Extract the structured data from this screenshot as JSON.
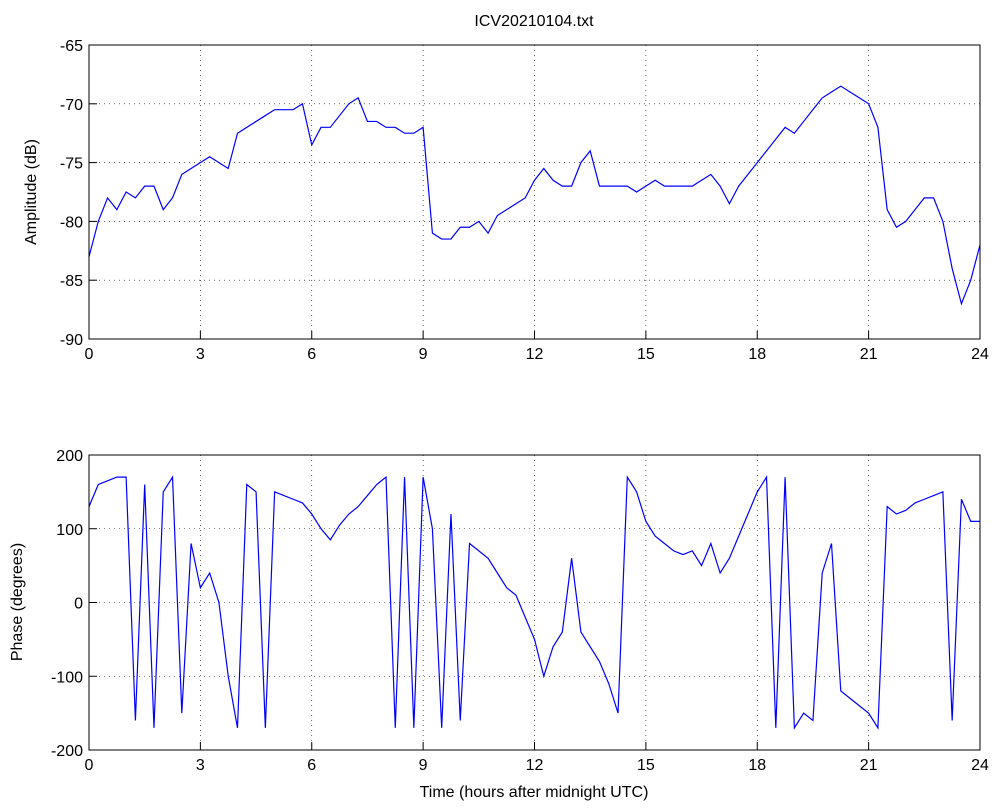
{
  "chart_data": [
    {
      "type": "line",
      "title": "ICV20210104.txt",
      "ylabel": "Amplitude (dB)",
      "x": [
        0,
        0.25,
        0.5,
        0.75,
        1,
        1.25,
        1.5,
        1.75,
        2,
        2.25,
        2.5,
        2.75,
        3,
        3.25,
        3.5,
        3.75,
        4,
        4.25,
        4.5,
        4.75,
        5,
        5.25,
        5.5,
        5.75,
        6,
        6.25,
        6.5,
        6.75,
        7,
        7.25,
        7.5,
        7.75,
        8,
        8.25,
        8.5,
        8.75,
        9,
        9.25,
        9.5,
        9.75,
        10,
        10.25,
        10.5,
        10.75,
        11,
        11.25,
        11.5,
        11.75,
        12,
        12.25,
        12.5,
        12.75,
        13,
        13.25,
        13.5,
        13.75,
        14,
        14.25,
        14.5,
        14.75,
        15,
        15.25,
        15.5,
        15.75,
        16,
        16.25,
        16.5,
        16.75,
        17,
        17.25,
        17.5,
        17.75,
        18,
        18.25,
        18.5,
        18.75,
        19,
        19.25,
        19.5,
        19.75,
        20,
        20.25,
        20.5,
        20.75,
        21,
        21.25,
        21.5,
        21.75,
        22,
        22.25,
        22.5,
        22.75,
        23,
        23.25,
        23.5,
        23.75,
        24
      ],
      "series": [
        {
          "color": "#0000ff",
          "values": [
            -83,
            -80,
            -78,
            -79,
            -77.5,
            -78,
            -77,
            -77,
            -79,
            -78,
            -76,
            -75.5,
            -75,
            -74.5,
            -75,
            -75.5,
            -72.5,
            -72,
            -71.5,
            -71,
            -70.5,
            -70.5,
            -70.5,
            -70,
            -73.5,
            -72,
            -72,
            -71,
            -70,
            -69.5,
            -71.5,
            -71.5,
            -72,
            -72,
            -72.5,
            -72.5,
            -72,
            -81,
            -81.5,
            -81.5,
            -80.5,
            -80.5,
            -80,
            -81,
            -79.5,
            -79,
            -78.5,
            -78,
            -76.5,
            -75.5,
            -76.5,
            -77,
            -77,
            -75,
            -74,
            -77,
            -77,
            -77,
            -77,
            -77.5,
            -77,
            -76.5,
            -77,
            -77,
            -77,
            -77,
            -76.5,
            -76,
            -77,
            -78.5,
            -77,
            -76,
            -75,
            -74,
            -73,
            -72,
            -72.5,
            -71.5,
            -70.5,
            -69.5,
            -69,
            -68.5,
            -69,
            -69.5,
            -70,
            -72,
            -79,
            -80.5,
            -80,
            -79,
            -78,
            -78,
            -80,
            -84,
            -87,
            -85,
            -82
          ]
        }
      ],
      "xlim": [
        0,
        24
      ],
      "xticks": [
        0,
        3,
        6,
        9,
        12,
        15,
        18,
        21,
        24
      ],
      "ylim": [
        -90,
        -65
      ],
      "yticks": [
        -90,
        -85,
        -80,
        -75,
        -70,
        -65
      ],
      "grid": true
    },
    {
      "type": "line",
      "ylabel": "Phase (degrees)",
      "xlabel": "Time (hours after midnight UTC)",
      "x": [
        0,
        0.25,
        0.5,
        0.75,
        1,
        1.25,
        1.5,
        1.75,
        2,
        2.25,
        2.5,
        2.75,
        3,
        3.25,
        3.5,
        3.75,
        4,
        4.25,
        4.5,
        4.75,
        5,
        5.25,
        5.5,
        5.75,
        6,
        6.25,
        6.5,
        6.75,
        7,
        7.25,
        7.5,
        7.75,
        8,
        8.25,
        8.5,
        8.75,
        9,
        9.25,
        9.5,
        9.75,
        10,
        10.25,
        10.5,
        10.75,
        11,
        11.25,
        11.5,
        11.75,
        12,
        12.25,
        12.5,
        12.75,
        13,
        13.25,
        13.5,
        13.75,
        14,
        14.25,
        14.5,
        14.75,
        15,
        15.25,
        15.5,
        15.75,
        16,
        16.25,
        16.5,
        16.75,
        17,
        17.25,
        17.5,
        17.75,
        18,
        18.25,
        18.5,
        18.75,
        19,
        19.25,
        19.5,
        19.75,
        20,
        20.25,
        20.5,
        20.75,
        21,
        21.25,
        21.5,
        21.75,
        22,
        22.25,
        22.5,
        22.75,
        23,
        23.25,
        23.5,
        23.75,
        24
      ],
      "series": [
        {
          "color": "#0000ff",
          "values": [
            130,
            160,
            165,
            170,
            170,
            -160,
            160,
            -170,
            150,
            170,
            -150,
            80,
            20,
            40,
            0,
            -100,
            -170,
            160,
            150,
            -170,
            150,
            145,
            140,
            135,
            120,
            100,
            85,
            105,
            120,
            130,
            145,
            160,
            170,
            -170,
            170,
            -170,
            170,
            100,
            -170,
            120,
            -160,
            80,
            70,
            60,
            40,
            20,
            10,
            -20,
            -50,
            -100,
            -60,
            -40,
            60,
            -40,
            -60,
            -80,
            -110,
            -150,
            170,
            150,
            110,
            90,
            80,
            70,
            65,
            70,
            50,
            80,
            40,
            60,
            90,
            120,
            150,
            170,
            -170,
            170,
            -170,
            -150,
            -160,
            40,
            80,
            -120,
            -130,
            -140,
            -150,
            -170,
            130,
            120,
            125,
            135,
            140,
            145,
            150,
            -160,
            140,
            110,
            110
          ]
        }
      ],
      "xlim": [
        0,
        24
      ],
      "xticks": [
        0,
        3,
        6,
        9,
        12,
        15,
        18,
        21,
        24
      ],
      "ylim": [
        -200,
        200
      ],
      "yticks": [
        -200,
        -100,
        0,
        100,
        200
      ],
      "grid": true
    }
  ]
}
